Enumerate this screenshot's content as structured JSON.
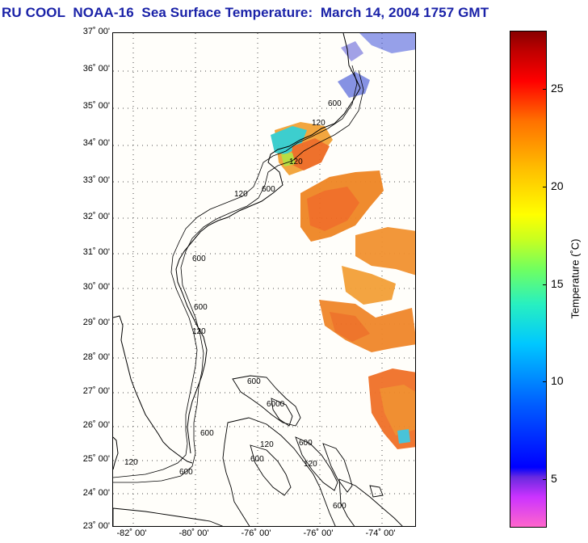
{
  "title": "RU COOL  NOAA-16  Sea Surface Temperature:  March 14, 2004 1757 GMT",
  "map": {
    "lat_labels": [
      "37˚ 00'",
      "36˚ 00'",
      "35˚ 00'",
      "34˚ 00'",
      "33˚ 00'",
      "32˚ 00'",
      "31˚ 00'",
      "30˚ 00'",
      "29˚ 00'",
      "28˚ 00'",
      "27˚ 00'",
      "26˚ 00'",
      "25˚ 00'",
      "24˚ 00'",
      "23˚ 00'"
    ],
    "lon_labels": [
      "-82˚ 00'",
      "-80˚ 00'",
      "-76˚ 00'",
      "-76˚ 00'",
      "-74˚ 00'"
    ],
    "contour_labels": [
      "120",
      "600",
      "120",
      "600",
      "120",
      "600",
      "600",
      "120",
      "600",
      "120",
      "600",
      "6000",
      "600",
      "120",
      "600",
      "120",
      "600",
      "600"
    ],
    "land_color": "#fffefa",
    "sst_warm_color": "#f08a28",
    "sst_cool_color": "#33cccc"
  },
  "colorbar": {
    "title": "Temperature (˚C)",
    "ticks": [
      "25",
      "20",
      "15",
      "10",
      "5"
    ],
    "tick_values": [
      25,
      20,
      15,
      10,
      5
    ],
    "range": [
      2.5,
      28
    ]
  }
}
